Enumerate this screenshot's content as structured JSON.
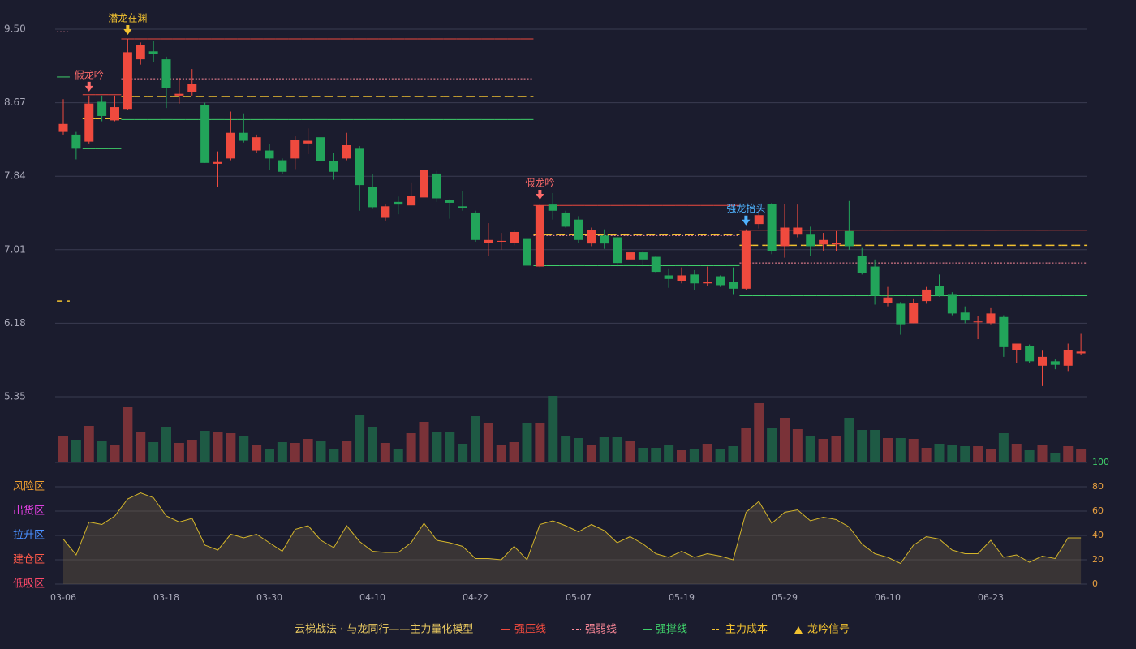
{
  "chart_data": {
    "type": "candlestick",
    "background": "#1b1c2e",
    "up_color": "#ef4a3e",
    "down_color": "#22a45a",
    "volume_up_color": "#7a3238",
    "volume_down_color": "#1e5a44",
    "categories": [
      "03-06",
      null,
      null,
      null,
      null,
      null,
      null,
      null,
      "03-18",
      null,
      null,
      null,
      null,
      null,
      null,
      null,
      "03-30",
      null,
      null,
      null,
      null,
      null,
      null,
      null,
      "04-10",
      null,
      null,
      null,
      null,
      null,
      null,
      null,
      "04-22",
      null,
      null,
      null,
      null,
      null,
      null,
      null,
      "05-07",
      null,
      null,
      null,
      null,
      null,
      null,
      null,
      "05-19",
      null,
      null,
      null,
      null,
      null,
      null,
      null,
      "05-29",
      null,
      null,
      null,
      null,
      null,
      null,
      null,
      "06-10",
      null,
      null,
      null,
      null,
      null,
      null,
      null,
      "06-23",
      null,
      null,
      null,
      null,
      null,
      null,
      null
    ],
    "open": [
      8.34,
      8.31,
      8.23,
      8.68,
      8.47,
      8.6,
      9.16,
      9.25,
      9.16,
      8.75,
      8.79,
      8.64,
      7.98,
      8.04,
      8.33,
      8.13,
      8.13,
      8.02,
      8.04,
      8.21,
      8.28,
      8.01,
      8.04,
      8.15,
      7.72,
      7.37,
      7.55,
      7.51,
      7.6,
      7.87,
      7.57,
      7.5,
      7.43,
      7.09,
      7.1,
      7.09,
      7.14,
      6.82,
      7.52,
      7.43,
      7.35,
      7.08,
      7.17,
      7.15,
      6.9,
      6.98,
      6.93,
      6.72,
      6.66,
      6.73,
      6.63,
      6.71,
      6.65,
      6.57,
      7.3,
      7.53,
      7.05,
      7.18,
      7.18,
      7.07,
      7.07,
      7.22,
      6.94,
      6.82,
      6.41,
      6.4,
      6.18,
      6.43,
      6.6,
      6.5,
      6.3,
      6.19,
      6.18,
      6.25,
      5.88,
      5.92,
      5.7,
      5.75,
      5.7,
      5.84
    ],
    "high": [
      8.71,
      8.34,
      8.75,
      8.75,
      8.75,
      9.39,
      9.35,
      9.37,
      9.19,
      8.95,
      9.05,
      8.67,
      8.12,
      8.57,
      8.55,
      8.31,
      8.2,
      8.04,
      8.29,
      8.38,
      8.31,
      8.1,
      8.33,
      8.18,
      7.86,
      7.52,
      7.61,
      7.77,
      7.94,
      7.9,
      7.58,
      7.67,
      7.45,
      7.31,
      7.2,
      7.23,
      7.15,
      7.53,
      7.65,
      7.45,
      7.39,
      7.26,
      7.24,
      7.16,
      7.0,
      7.0,
      6.94,
      6.8,
      6.81,
      6.78,
      6.82,
      6.72,
      6.81,
      7.24,
      7.46,
      7.54,
      7.53,
      7.52,
      7.27,
      7.2,
      7.22,
      7.56,
      7.03,
      6.9,
      6.59,
      6.42,
      6.46,
      6.59,
      6.73,
      6.53,
      6.37,
      6.26,
      6.35,
      6.27,
      5.95,
      5.94,
      5.87,
      5.77,
      5.95,
      6.06
    ],
    "low": [
      8.31,
      8.03,
      8.21,
      8.46,
      8.46,
      8.59,
      9.1,
      9.13,
      8.61,
      8.66,
      8.75,
      7.99,
      7.72,
      8.02,
      8.22,
      8.1,
      7.91,
      7.86,
      7.92,
      8.09,
      7.98,
      7.8,
      8.02,
      7.45,
      7.47,
      7.33,
      7.41,
      7.51,
      7.58,
      7.55,
      7.36,
      7.45,
      7.1,
      6.94,
      7.01,
      7.06,
      6.64,
      6.81,
      7.35,
      7.26,
      7.09,
      7.05,
      7.02,
      6.82,
      6.73,
      6.82,
      6.75,
      6.58,
      6.63,
      6.55,
      6.6,
      6.59,
      6.5,
      6.56,
      7.25,
      6.96,
      6.92,
      7.15,
      6.94,
      7.0,
      6.99,
      7.01,
      6.73,
      6.39,
      6.37,
      6.05,
      6.18,
      6.4,
      6.48,
      6.27,
      6.18,
      6.0,
      6.16,
      5.8,
      5.73,
      5.73,
      5.47,
      5.66,
      5.64,
      5.82
    ],
    "close": [
      8.43,
      8.15,
      8.66,
      8.52,
      8.62,
      9.24,
      9.32,
      9.22,
      8.84,
      8.77,
      8.88,
      7.99,
      8.0,
      8.33,
      8.24,
      8.28,
      8.04,
      7.89,
      8.25,
      8.24,
      8.01,
      7.89,
      8.19,
      7.74,
      7.49,
      7.5,
      7.52,
      7.62,
      7.91,
      7.59,
      7.54,
      7.48,
      7.12,
      7.12,
      7.11,
      7.21,
      6.83,
      7.51,
      7.45,
      7.27,
      7.12,
      7.23,
      7.08,
      6.86,
      6.98,
      6.9,
      6.76,
      6.68,
      6.72,
      6.63,
      6.65,
      6.61,
      6.57,
      7.22,
      7.4,
      6.99,
      7.26,
      7.26,
      7.05,
      7.12,
      7.09,
      7.05,
      6.75,
      6.49,
      6.47,
      6.16,
      6.41,
      6.56,
      6.49,
      6.29,
      6.21,
      6.2,
      6.29,
      5.91,
      5.95,
      5.75,
      5.8,
      5.71,
      5.88,
      5.86
    ],
    "volume": [
      32,
      28,
      45,
      27,
      22,
      68,
      38,
      25,
      44,
      24,
      28,
      39,
      37,
      36,
      33,
      22,
      17,
      25,
      24,
      29,
      27,
      17,
      26,
      58,
      44,
      24,
      17,
      36,
      50,
      37,
      37,
      23,
      57,
      48,
      21,
      25,
      49,
      48,
      82,
      32,
      30,
      22,
      31,
      31,
      27,
      18,
      18,
      22,
      15,
      16,
      23,
      16,
      20,
      43,
      73,
      43,
      55,
      41,
      33,
      29,
      32,
      55,
      40,
      40,
      30,
      30,
      29,
      18,
      23,
      22,
      20,
      20,
      17,
      36,
      23,
      15,
      21,
      12,
      20,
      17
    ],
    "ylim": [
      5.35,
      9.5
    ],
    "yticks": [
      5.35,
      6.18,
      7.01,
      7.84,
      8.67,
      {
        "value": 9.5,
        "label": "9.50"
      }
    ],
    "grid": true,
    "levels": [
      {
        "name": "强压线",
        "color": "#ef4a3e",
        "dash": "solid",
        "values": [
          null,
          null,
          8.76,
          8.76,
          8.76,
          9.39,
          9.39,
          9.39,
          9.39,
          9.39,
          9.39,
          9.39,
          9.39,
          9.39,
          9.39,
          9.39,
          9.39,
          9.39,
          9.39,
          9.39,
          9.39,
          9.39,
          9.39,
          9.39,
          9.39,
          9.39,
          9.39,
          9.39,
          9.39,
          9.39,
          9.39,
          9.39,
          9.39,
          9.39,
          9.39,
          9.39,
          9.39,
          7.51,
          7.51,
          7.51,
          7.51,
          7.51,
          7.51,
          7.51,
          7.51,
          7.51,
          7.51,
          7.51,
          7.51,
          7.51,
          7.51,
          7.51,
          7.51,
          7.23,
          7.23,
          7.23,
          7.23,
          7.23,
          7.23,
          7.23,
          7.23,
          7.23,
          7.23,
          7.23,
          7.23,
          7.23,
          7.23,
          7.23,
          7.23,
          7.23,
          7.23,
          7.23,
          7.23,
          7.23,
          7.23,
          7.23,
          7.23,
          7.23,
          7.23,
          7.23
        ]
      },
      {
        "name": "强弱线",
        "color": "#ff8a9a",
        "dash": "dotted",
        "values": [
          9.47,
          null,
          null,
          null,
          null,
          8.94,
          8.94,
          8.94,
          8.94,
          8.94,
          8.94,
          8.94,
          8.94,
          8.94,
          8.94,
          8.94,
          8.94,
          8.94,
          8.94,
          8.94,
          8.94,
          8.94,
          8.94,
          8.94,
          8.94,
          8.94,
          8.94,
          8.94,
          8.94,
          8.94,
          8.94,
          8.94,
          8.94,
          8.94,
          8.94,
          8.94,
          8.94,
          7.17,
          7.17,
          7.17,
          7.17,
          7.17,
          7.17,
          7.17,
          7.17,
          7.17,
          7.17,
          7.17,
          7.17,
          7.17,
          7.17,
          7.17,
          7.17,
          6.86,
          6.86,
          6.86,
          6.86,
          6.86,
          6.86,
          6.86,
          6.86,
          6.86,
          6.86,
          6.86,
          6.86,
          6.86,
          6.86,
          6.86,
          6.86,
          6.86,
          6.86,
          6.86,
          6.86,
          6.86,
          6.86,
          6.86,
          6.86,
          6.86,
          6.86,
          6.86
        ]
      },
      {
        "name": "强撑线",
        "color": "#3fcf6a",
        "dash": "solid",
        "values": [
          8.96,
          null,
          8.15,
          8.15,
          8.15,
          8.48,
          8.48,
          8.48,
          8.48,
          8.48,
          8.48,
          8.48,
          8.48,
          8.48,
          8.48,
          8.48,
          8.48,
          8.48,
          8.48,
          8.48,
          8.48,
          8.48,
          8.48,
          8.48,
          8.48,
          8.48,
          8.48,
          8.48,
          8.48,
          8.48,
          8.48,
          8.48,
          8.48,
          8.48,
          8.48,
          8.48,
          8.48,
          6.83,
          6.83,
          6.83,
          6.83,
          6.83,
          6.83,
          6.83,
          6.83,
          6.83,
          6.83,
          6.83,
          6.83,
          6.83,
          6.83,
          6.83,
          6.83,
          6.49,
          6.49,
          6.49,
          6.49,
          6.49,
          6.49,
          6.49,
          6.49,
          6.49,
          6.49,
          6.49,
          6.49,
          6.49,
          6.49,
          6.49,
          6.49,
          6.49,
          6.49,
          6.49,
          6.49,
          6.49,
          6.49,
          6.49,
          6.49,
          6.49,
          6.49,
          6.49
        ]
      },
      {
        "name": "主力成本",
        "color": "#f2c230",
        "dash": "dashed",
        "values": [
          6.43,
          null,
          8.49,
          8.49,
          8.49,
          8.74,
          8.74,
          8.74,
          8.74,
          8.74,
          8.74,
          8.74,
          8.74,
          8.74,
          8.74,
          8.74,
          8.74,
          8.74,
          8.74,
          8.74,
          8.74,
          8.74,
          8.74,
          8.74,
          8.74,
          8.74,
          8.74,
          8.74,
          8.74,
          8.74,
          8.74,
          8.74,
          8.74,
          8.74,
          8.74,
          8.74,
          8.74,
          7.18,
          7.18,
          7.18,
          7.18,
          7.18,
          7.18,
          7.18,
          7.18,
          7.18,
          7.18,
          7.18,
          7.18,
          7.18,
          7.18,
          7.18,
          7.18,
          7.06,
          7.06,
          7.06,
          7.06,
          7.06,
          7.06,
          7.06,
          7.06,
          7.06,
          7.06,
          7.06,
          7.06,
          7.06,
          7.06,
          7.06,
          7.06,
          7.06,
          7.06,
          7.06,
          7.06,
          7.06,
          7.06,
          7.06,
          7.06,
          7.06,
          7.06,
          7.06
        ]
      }
    ],
    "signals": {
      "name": "龙吟信号",
      "color": "#f2c230",
      "points": [
        {
          "index": 2,
          "label": "假龙吟",
          "color": "#ff6b6b"
        },
        {
          "index": 5,
          "label": "潜龙在渊",
          "color": "#f2c230"
        },
        {
          "index": 37,
          "label": "假龙吟",
          "color": "#ff6b6b"
        },
        {
          "index": 53,
          "label": "强龙抬头",
          "color": "#4fb3ff"
        }
      ]
    },
    "indicator": {
      "line_color": "#d4b52a",
      "values": [
        37,
        24,
        51,
        49,
        56,
        70,
        75,
        71,
        56,
        51,
        54,
        32,
        28,
        41,
        38,
        41,
        34,
        27,
        45,
        48,
        36,
        30,
        48,
        35,
        27,
        26,
        26,
        34,
        50,
        36,
        34,
        31,
        21,
        21,
        20,
        31,
        20,
        49,
        52,
        48,
        43,
        49,
        44,
        34,
        39,
        33,
        25,
        22,
        27,
        22,
        25,
        23,
        20,
        59,
        68,
        50,
        59,
        61,
        52,
        55,
        53,
        47,
        33,
        25,
        22,
        17,
        32,
        39,
        37,
        28,
        25,
        25,
        36,
        22,
        24,
        18,
        23,
        21,
        38,
        38
      ],
      "ylim": [
        0,
        100
      ],
      "yticks": [
        0,
        20,
        40,
        60,
        80,
        100
      ],
      "zones": [
        {
          "label": "风险区",
          "value": 80,
          "color": "#f0a030"
        },
        {
          "label": "出货区",
          "value": 60,
          "color": "#e040e0"
        },
        {
          "label": "拉升区",
          "value": 40,
          "color": "#4a90ff"
        },
        {
          "label": "建仓区",
          "value": 20,
          "color": "#ff5a4a"
        },
        {
          "label": "低吸区",
          "value": 0,
          "color": "#ff4a6a"
        }
      ]
    },
    "legend_title": "云梯战法 · 与龙同行——主力量化模型"
  }
}
